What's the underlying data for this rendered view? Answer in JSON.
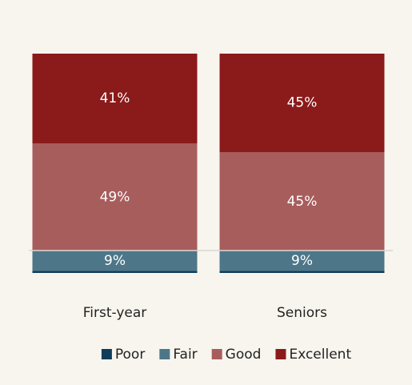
{
  "chart_data": {
    "type": "stacked_bar",
    "categories": [
      "First-year",
      "Seniors"
    ],
    "series": [
      {
        "name": "Poor",
        "color": "#0e3c5a",
        "values": [
          1,
          1
        ]
      },
      {
        "name": "Fair",
        "color": "#4e7689",
        "values": [
          9,
          9
        ],
        "value_labels": [
          "9%",
          "9%"
        ]
      },
      {
        "name": "Good",
        "color": "#a85d5d",
        "values": [
          49,
          45
        ],
        "value_labels": [
          "49%",
          "45%"
        ]
      },
      {
        "name": "Excellent",
        "color": "#8b1a1a",
        "values": [
          41,
          45
        ],
        "value_labels": [
          "41%",
          "45%"
        ]
      }
    ],
    "ylim": [
      0,
      100
    ],
    "legend": "bottom"
  }
}
